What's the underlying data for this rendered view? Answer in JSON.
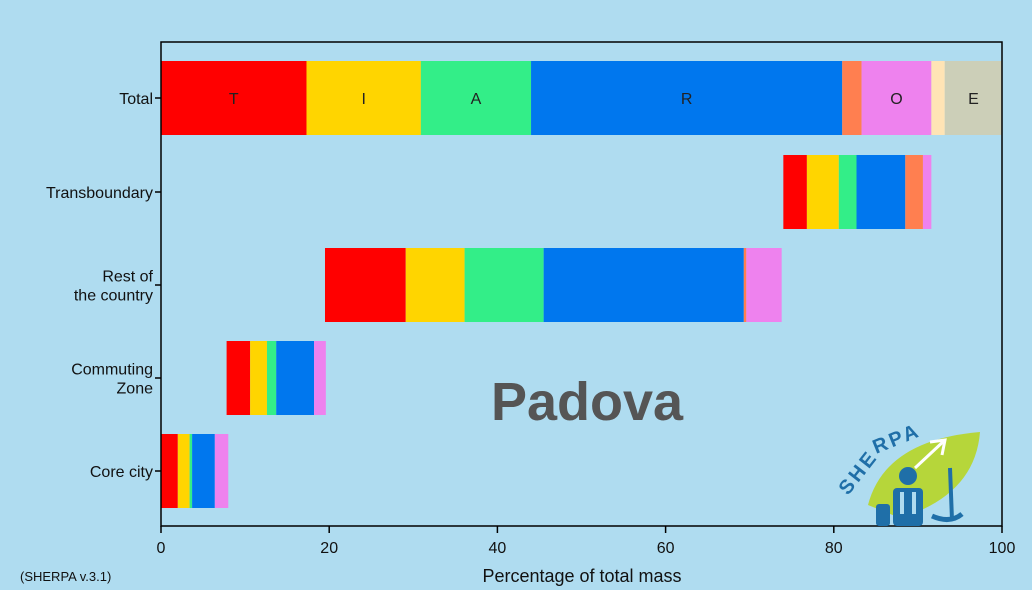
{
  "chart_data": {
    "type": "bar",
    "orientation": "horizontal",
    "stacked": true,
    "title": "Padova",
    "xlabel": "Percentage of total mass",
    "xlim": [
      0,
      100
    ],
    "xticks": [
      0,
      20,
      40,
      60,
      80,
      100
    ],
    "categories": [
      "Total",
      "Transboundary",
      "Rest of the country",
      "Commuting Zone",
      "Core city"
    ],
    "category_label_lines": [
      [
        "Total"
      ],
      [
        "Transboundary"
      ],
      [
        "Rest of",
        "the country"
      ],
      [
        "Commuting",
        "Zone"
      ],
      [
        "Core city"
      ]
    ],
    "series": [
      {
        "name": "T",
        "color": "#ff0000",
        "values": [
          17.3,
          2.8,
          9.6,
          2.8,
          2.0
        ]
      },
      {
        "name": "I",
        "color": "#ffd500",
        "values": [
          13.6,
          3.8,
          7.0,
          2.0,
          1.4
        ]
      },
      {
        "name": "A",
        "color": "#33ee88",
        "values": [
          13.1,
          2.1,
          9.4,
          1.1,
          0.3
        ]
      },
      {
        "name": "R",
        "color": "#0077ee",
        "values": [
          37.0,
          5.8,
          23.8,
          4.5,
          2.7
        ]
      },
      {
        "name": "",
        "color": "#ff7f50",
        "values": [
          2.3,
          2.1,
          0.3,
          0.0,
          0.0
        ]
      },
      {
        "name": "O",
        "color": "#ee82ee",
        "values": [
          8.3,
          1.0,
          4.2,
          1.4,
          1.6
        ]
      },
      {
        "name": "",
        "color": "#ffe4b5",
        "values": [
          1.6,
          0.0,
          0.0,
          0.0,
          0.0
        ]
      },
      {
        "name": "E",
        "color": "#cccfb8",
        "values": [
          6.8,
          0.0,
          0.0,
          0.0,
          0.0
        ]
      }
    ],
    "starts": [
      0,
      74.0,
      19.5,
      7.8,
      0
    ],
    "background": "#afdcf0",
    "version_note": "(SHERPA v.3.1)",
    "logo_text": "SHERPA"
  }
}
